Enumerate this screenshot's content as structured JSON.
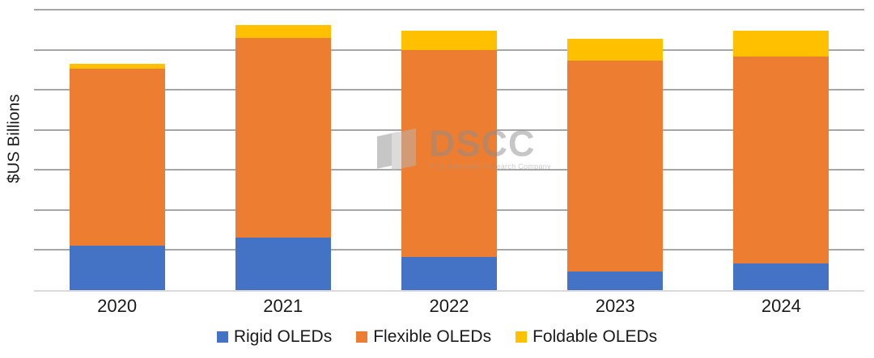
{
  "chart_data": {
    "type": "bar",
    "stacked": true,
    "title": "",
    "xlabel": "",
    "ylabel": "$US Billions",
    "ylim": [
      0,
      35
    ],
    "gridline_step": 5,
    "grid": true,
    "y_tick_labels_visible": false,
    "legend_position": "bottom",
    "categories": [
      "2020",
      "2021",
      "2022",
      "2023",
      "2024"
    ],
    "series": [
      {
        "name": "Rigid OLEDs",
        "color": "#4472C4",
        "values": [
          5.5,
          6.6,
          4.1,
          2.3,
          3.3
        ]
      },
      {
        "name": "Flexible OLEDs",
        "color": "#ED7D31",
        "values": [
          22.1,
          24.9,
          25.9,
          26.3,
          25.9
        ]
      },
      {
        "name": "Foldable OLEDs",
        "color": "#FFC000",
        "values": [
          0.6,
          1.6,
          2.4,
          2.8,
          3.2
        ]
      }
    ],
    "totals": [
      28.2,
      33.1,
      32.4,
      31.4,
      32.4
    ]
  },
  "watermark": {
    "title": "DSCC",
    "subtitle": "A Counterpoint Research Company"
  },
  "colors": {
    "gridline": "#A6A6A6",
    "baseline": "#D9D9D9",
    "text": "#1a1a1a"
  }
}
